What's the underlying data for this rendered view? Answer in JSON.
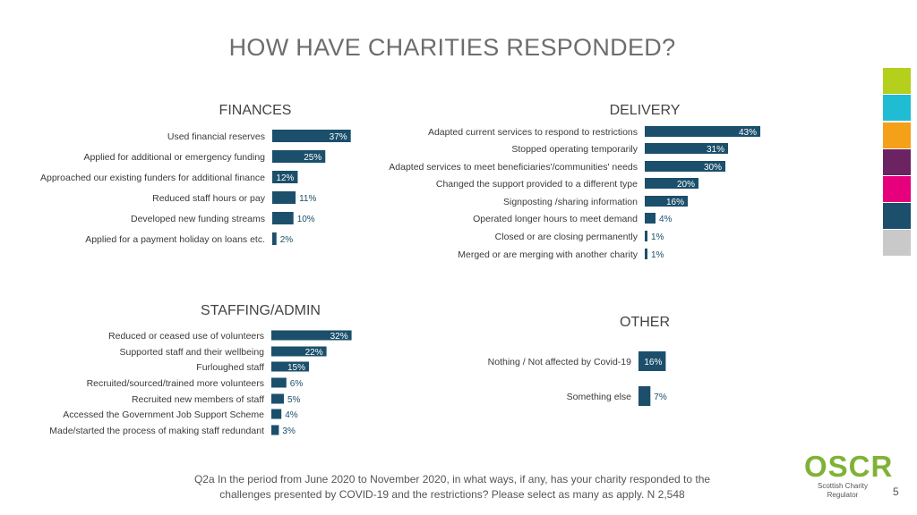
{
  "title": "HOW HAVE CHARITIES RESPONDED?",
  "colors": {
    "bar": "#1b4f6b",
    "label": "#3a3a3a",
    "value_inside": "#ffffff",
    "value_outside": "#1b4f6b",
    "stripes": [
      "#b4cf1c",
      "#20bcd3",
      "#f4a019",
      "#6b2461",
      "#e6007e",
      "#1b4f6b",
      "#c9c9c9"
    ]
  },
  "chart_data": [
    {
      "type": "bar",
      "title": "FINANCES",
      "orientation": "horizontal",
      "categories": [
        "Used financial reserves",
        "Applied for additional or emergency funding",
        "Approached our existing funders for additional finance",
        "Reduced staff hours or pay",
        "Developed new funding streams",
        "Applied for a payment holiday on loans etc."
      ],
      "values": [
        37,
        25,
        12,
        11,
        10,
        2
      ],
      "unit": "%"
    },
    {
      "type": "bar",
      "title": "DELIVERY",
      "orientation": "horizontal",
      "categories": [
        "Adapted current services to respond to restrictions",
        "Stopped operating temporarily",
        "Adapted services to meet beneficiaries'/communities' needs",
        "Changed the support provided to a different type",
        "Signposting /sharing information",
        "Operated longer hours to meet demand",
        "Closed or are closing permanently",
        "Merged or are merging with another charity"
      ],
      "values": [
        43,
        31,
        30,
        20,
        16,
        4,
        1,
        1
      ],
      "unit": "%"
    },
    {
      "type": "bar",
      "title": "STAFFING/ADMIN",
      "orientation": "horizontal",
      "categories": [
        "Reduced or ceased use of volunteers",
        "Supported staff and their wellbeing",
        "Furloughed staff",
        "Recruited/sourced/trained more volunteers",
        "Recruited new members of staff",
        "Accessed the Government Job Support Scheme",
        "Made/started the process of making staff redundant"
      ],
      "values": [
        32,
        22,
        15,
        6,
        5,
        4,
        3
      ],
      "unit": "%"
    },
    {
      "type": "bar",
      "title": "OTHER",
      "orientation": "horizontal",
      "categories": [
        "Nothing / Not affected by Covid-19",
        "Something else"
      ],
      "values": [
        16,
        7
      ],
      "unit": "%"
    }
  ],
  "footnote": {
    "line1": "Q2a In the period from June 2020 to November 2020, in what ways, if any, has your charity responded to the",
    "line2": "challenges presented by COVID-19 and the restrictions? Please select as many as apply. N 2,548"
  },
  "logo": {
    "name": "OSCR",
    "subtitle": "Scottish Charity Regulator"
  },
  "page_number": "5"
}
